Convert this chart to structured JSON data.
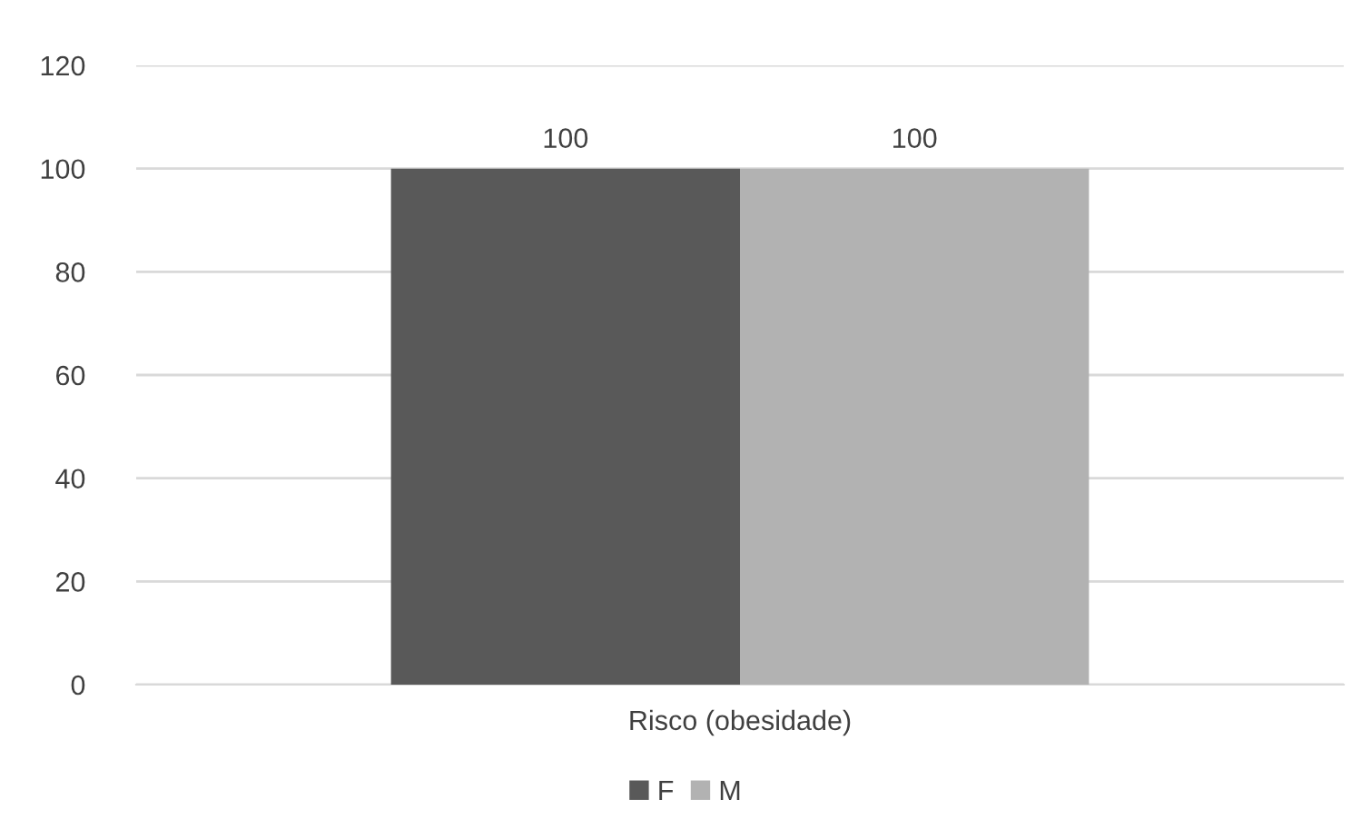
{
  "chart_data": {
    "type": "bar",
    "categories": [
      "Risco (obesidade)"
    ],
    "series": [
      {
        "name": "F",
        "color": "#595959",
        "values": [
          100
        ]
      },
      {
        "name": "M",
        "color": "#b2b2b2",
        "values": [
          100
        ]
      }
    ],
    "ylim": [
      0,
      120
    ],
    "yticks": [
      0,
      20,
      40,
      60,
      80,
      100,
      120
    ],
    "grid": "y",
    "legend": "bottom",
    "data_labels": true
  }
}
